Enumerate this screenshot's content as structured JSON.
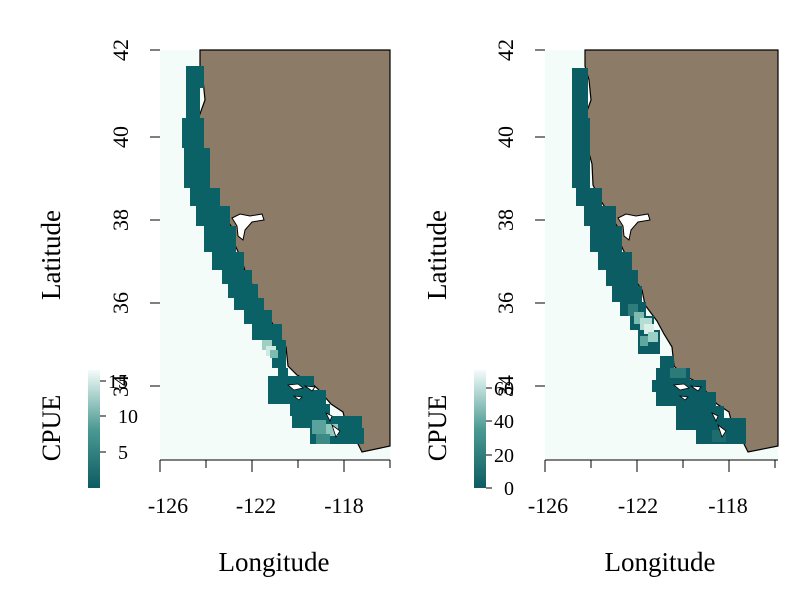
{
  "colors": {
    "land": "#8b7b67",
    "ocean": "#f3fcf9",
    "coastline": "#000000",
    "cpue_low": "#0b5c63",
    "cpue_high": "#f3fcf9"
  },
  "panels": [
    {
      "xlabel": "Longitude",
      "ylabel": "Latitude",
      "x_ticks": [
        "-126",
        "-122",
        "-118"
      ],
      "y_ticks": [
        "42",
        "40",
        "38",
        "36",
        "34"
      ],
      "legend": {
        "title": "CPUE",
        "ticks": [
          "15",
          "10",
          "5"
        ]
      }
    },
    {
      "xlabel": "Longitude",
      "ylabel": "Latitude",
      "x_ticks": [
        "-126",
        "-122",
        "-118"
      ],
      "y_ticks": [
        "42",
        "40",
        "38",
        "36",
        "34"
      ],
      "legend": {
        "title": "CPUE",
        "ticks": [
          "60",
          "40",
          "20",
          "0"
        ]
      }
    }
  ],
  "chart_data": [
    {
      "type": "heatmap",
      "xlabel": "Longitude",
      "ylabel": "Latitude",
      "xlim": [
        -126.0,
        -116.0
      ],
      "ylim": [
        33.0,
        42.0
      ],
      "legend_title": "CPUE",
      "legend_range": [
        0,
        18
      ],
      "cells": [
        [
          -124.9,
          41.5,
          1.5
        ],
        [
          -124.9,
          40.5,
          1.5
        ],
        [
          -124.4,
          40.0,
          2.0
        ],
        [
          -124.0,
          39.0,
          2.0
        ],
        [
          -123.6,
          38.2,
          2.5
        ],
        [
          -123.0,
          37.5,
          2.5
        ],
        [
          -122.6,
          36.8,
          2.0
        ],
        [
          -122.1,
          36.2,
          2.5
        ],
        [
          -121.7,
          35.6,
          3.0
        ],
        [
          -121.2,
          35.3,
          14.0
        ],
        [
          -120.8,
          34.8,
          2.5
        ],
        [
          -120.3,
          34.2,
          3.0
        ],
        [
          -119.7,
          33.9,
          3.0
        ],
        [
          -119.0,
          33.6,
          5.0
        ],
        [
          -118.6,
          33.4,
          8.0
        ],
        [
          -118.1,
          33.3,
          10.0
        ]
      ]
    },
    {
      "type": "heatmap",
      "xlabel": "Longitude",
      "ylabel": "Latitude",
      "xlim": [
        -126.0,
        -116.0
      ],
      "ylim": [
        33.0,
        42.0
      ],
      "legend_title": "CPUE",
      "legend_range": [
        0,
        65
      ],
      "cells": [
        [
          -125.1,
          41.5,
          1.0
        ],
        [
          -125.1,
          40.5,
          1.0
        ],
        [
          -124.9,
          39.5,
          1.0
        ],
        [
          -124.5,
          38.5,
          2.0
        ],
        [
          -124.0,
          38.0,
          2.0
        ],
        [
          -123.6,
          37.4,
          4.0
        ],
        [
          -123.1,
          36.8,
          6.0
        ],
        [
          -122.5,
          36.1,
          30.0
        ],
        [
          -122.1,
          35.6,
          55.0
        ],
        [
          -121.7,
          35.4,
          25.0
        ],
        [
          -121.2,
          34.6,
          8.0
        ],
        [
          -120.4,
          34.2,
          4.0
        ],
        [
          -119.7,
          34.0,
          5.0
        ],
        [
          -119.0,
          33.6,
          6.0
        ],
        [
          -118.4,
          33.4,
          5.0
        ],
        [
          -117.8,
          33.3,
          4.0
        ]
      ]
    }
  ]
}
